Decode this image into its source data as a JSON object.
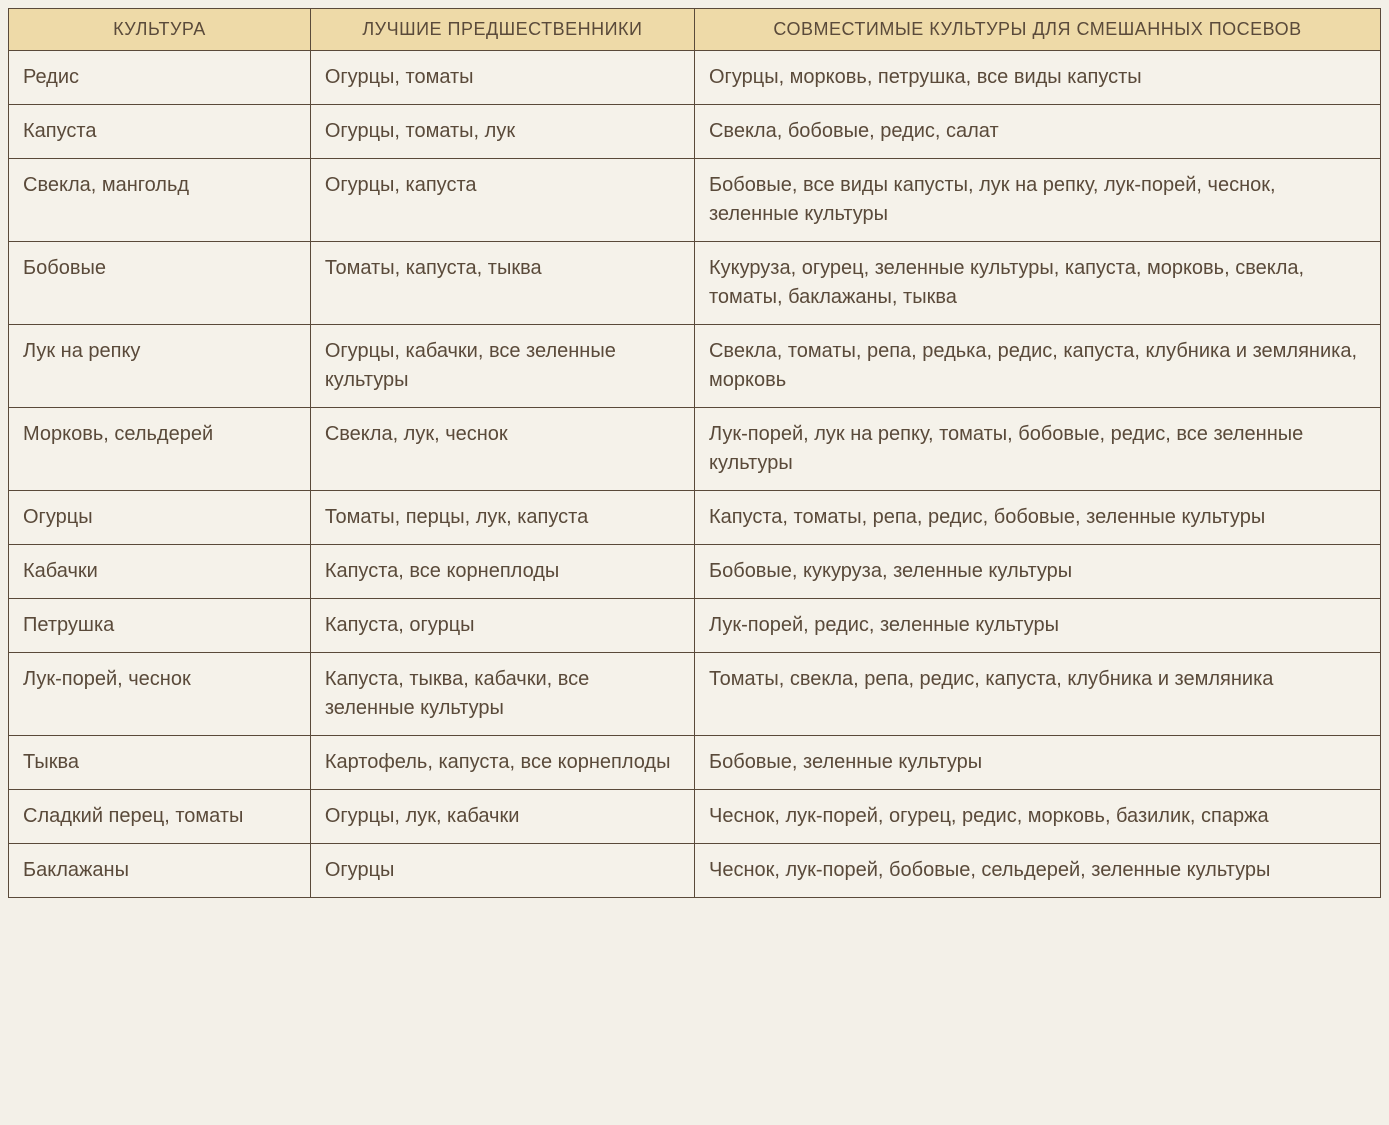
{
  "table": {
    "background_color": "#f5f2ea",
    "header_bg": "#eedaa8",
    "border_color": "#5a4a3a",
    "text_color": "#5a4a3a",
    "header_fontsize": 18,
    "cell_fontsize": 20,
    "columns": [
      {
        "label": "КУЛЬТУРА",
        "width_pct": 22
      },
      {
        "label": "ЛУЧШИЕ ПРЕДШЕСТВЕННИКИ",
        "width_pct": 28
      },
      {
        "label": "СОВМЕСТИМЫЕ КУЛЬТУРЫ ДЛЯ СМЕШАННЫХ ПОСЕВОВ",
        "width_pct": 50
      }
    ],
    "rows": [
      {
        "culture": "Редис",
        "predecessors": "Огурцы, томаты",
        "compatible": "Огурцы, морковь, петрушка, все виды капусты"
      },
      {
        "culture": "Капуста",
        "predecessors": "Огурцы, томаты, лук",
        "compatible": "Свекла, бобовые, редис, салат"
      },
      {
        "culture": "Свекла, мангольд",
        "predecessors": "Огурцы, капуста",
        "compatible": "Бобовые, все виды капусты, лук на репку, лук-порей, чеснок, зеленные культуры"
      },
      {
        "culture": "Бобовые",
        "predecessors": "Томаты, капуста, тыква",
        "compatible": "Кукуруза, огурец, зеленные культуры, капуста, морковь, свекла, томаты, баклажаны, тыква"
      },
      {
        "culture": "Лук на репку",
        "predecessors": "Огурцы, кабачки, все зеленные культуры",
        "compatible": "Свекла, томаты, репа, редька, редис, капуста, клубника и земляника, морковь"
      },
      {
        "culture": "Морковь, сельдерей",
        "predecessors": "Свекла, лук, чеснок",
        "compatible": "Лук-порей, лук на репку, томаты, бобовые, редис, все зеленные культуры"
      },
      {
        "culture": "Огурцы",
        "predecessors": "Томаты, перцы, лук, капуста",
        "compatible": "Капуста, томаты, репа, редис, бобовые, зеленные культуры"
      },
      {
        "culture": "Кабачки",
        "predecessors": "Капуста, все корнеплоды",
        "compatible": "Бобовые, кукуруза, зеленные культуры"
      },
      {
        "culture": "Петрушка",
        "predecessors": "Капуста, огурцы",
        "compatible": "Лук-порей, редис, зеленные культуры"
      },
      {
        "culture": "Лук-порей, чеснок",
        "predecessors": "Капуста, тыква, кабачки, все зеленные культуры",
        "compatible": "Томаты, свекла, репа, редис, капуста, клубника и земляника"
      },
      {
        "culture": "Тыква",
        "predecessors": "Картофель, капуста, все корнеплоды",
        "compatible": "Бобовые, зеленные культуры"
      },
      {
        "culture": "Сладкий перец, томаты",
        "predecessors": "Огурцы, лук, кабачки",
        "compatible": "Чеснок, лук-порей, огурец, редис, морковь, базилик, спаржа"
      },
      {
        "culture": "Баклажаны",
        "predecessors": "Огурцы",
        "compatible": "Чеснок, лук-порей, бобовые, сельдерей, зеленные культуры"
      }
    ]
  }
}
